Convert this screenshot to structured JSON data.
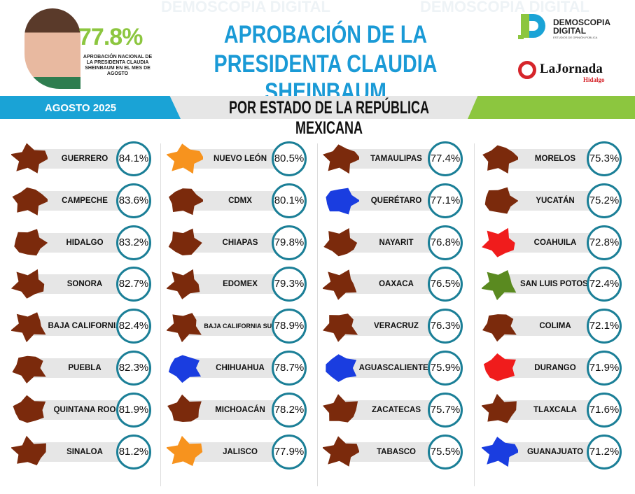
{
  "header": {
    "national_pct": "77.8%",
    "national_desc": "APROBACIÓN NACIONAL DE LA PRESIDENTA CLAUDIA SHEINBAUM EN EL MES DE AGOSTO",
    "title_line1": "APROBACIÓN DE LA",
    "title_line2": "PRESIDENTA CLAUDIA SHEINBAUM",
    "logo1_name": "DEMOSCOPIA DIGITAL",
    "logo1_sub": "ESTUDIOS DE OPINIÓN PÚBLICA",
    "logo2_name": "LaJornada",
    "logo2_sub": "Hidalgo",
    "watermark": "DEMOSCOPIA DIGITAL"
  },
  "band": {
    "date": "AGOSTO 2025",
    "subtitle": "POR ESTADO DE LA REPÚBLICA MEXICANA"
  },
  "colors": {
    "brown": "#7b2a0c",
    "orange": "#f7931e",
    "blue": "#1a3de0",
    "red": "#f01c1c",
    "green": "#5a8a20",
    "accent": "#1a9ad6",
    "lime": "#8cc63f",
    "ring": "#1b7f97"
  },
  "columns": [
    [
      {
        "name": "GUERRERO",
        "pct": "84.1%",
        "color": "brown"
      },
      {
        "name": "CAMPECHE",
        "pct": "83.6%",
        "color": "brown"
      },
      {
        "name": "HIDALGO",
        "pct": "83.2%",
        "color": "brown"
      },
      {
        "name": "SONORA",
        "pct": "82.7%",
        "color": "brown"
      },
      {
        "name": "BAJA CALIFORNIA",
        "pct": "82.4%",
        "color": "brown"
      },
      {
        "name": "PUEBLA",
        "pct": "82.3%",
        "color": "brown"
      },
      {
        "name": "QUINTANA ROO",
        "pct": "81.9%",
        "color": "brown"
      },
      {
        "name": "SINALOA",
        "pct": "81.2%",
        "color": "brown"
      }
    ],
    [
      {
        "name": "NUEVO LEÓN",
        "pct": "80.5%",
        "color": "orange"
      },
      {
        "name": "CDMX",
        "pct": "80.1%",
        "color": "brown"
      },
      {
        "name": "CHIAPAS",
        "pct": "79.8%",
        "color": "brown"
      },
      {
        "name": "EDOMEX",
        "pct": "79.3%",
        "color": "brown"
      },
      {
        "name": "BAJA CALIFORNIA SUR",
        "pct": "78.9%",
        "color": "brown"
      },
      {
        "name": "CHIHUAHUA",
        "pct": "78.7%",
        "color": "blue"
      },
      {
        "name": "MICHOACÁN",
        "pct": "78.2%",
        "color": "brown"
      },
      {
        "name": "JALISCO",
        "pct": "77.9%",
        "color": "orange"
      }
    ],
    [
      {
        "name": "TAMAULIPAS",
        "pct": "77.4%",
        "color": "brown"
      },
      {
        "name": "QUERÉTARO",
        "pct": "77.1%",
        "color": "blue"
      },
      {
        "name": "NAYARIT",
        "pct": "76.8%",
        "color": "brown"
      },
      {
        "name": "OAXACA",
        "pct": "76.5%",
        "color": "brown"
      },
      {
        "name": "VERACRUZ",
        "pct": "76.3%",
        "color": "brown"
      },
      {
        "name": "AGUASCALIENTES",
        "pct": "75.9%",
        "color": "blue"
      },
      {
        "name": "ZACATECAS",
        "pct": "75.7%",
        "color": "brown"
      },
      {
        "name": "TABASCO",
        "pct": "75.5%",
        "color": "brown"
      }
    ],
    [
      {
        "name": "MORELOS",
        "pct": "75.3%",
        "color": "brown"
      },
      {
        "name": "YUCATÁN",
        "pct": "75.2%",
        "color": "brown"
      },
      {
        "name": "COAHUILA",
        "pct": "72.8%",
        "color": "red"
      },
      {
        "name": "SAN LUIS POTOSÍ",
        "pct": "72.4%",
        "color": "green"
      },
      {
        "name": "COLIMA",
        "pct": "72.1%",
        "color": "brown"
      },
      {
        "name": "DURANGO",
        "pct": "71.9%",
        "color": "red"
      },
      {
        "name": "TLAXCALA",
        "pct": "71.6%",
        "color": "brown"
      },
      {
        "name": "GUANAJUATO",
        "pct": "71.2%",
        "color": "blue"
      }
    ]
  ]
}
